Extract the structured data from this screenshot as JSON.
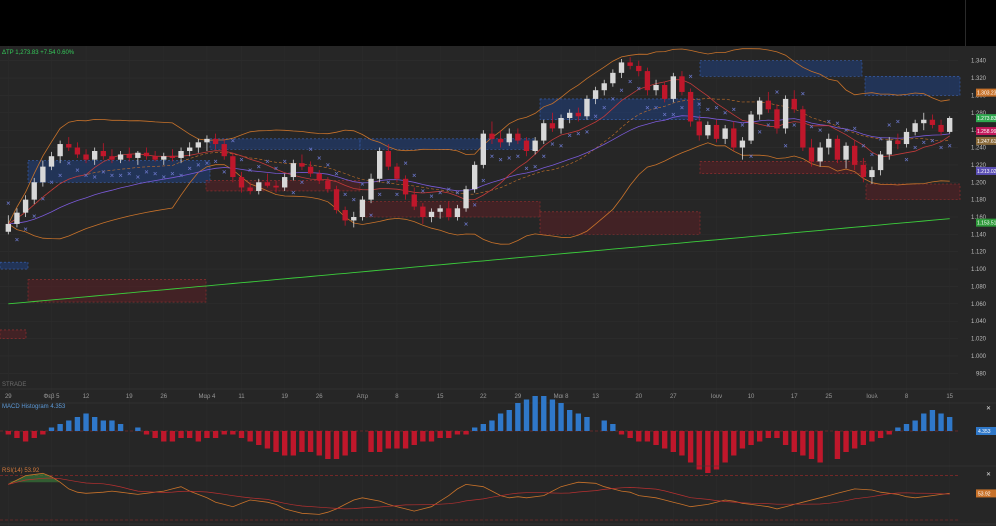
{
  "symbol_line": {
    "label": "ΔTP 1,273.83 +7.54 0.60%"
  },
  "watermark": "STRADE",
  "price_axis": {
    "ticks": [
      "1.340",
      "1.320",
      "1.300",
      "1.280",
      "1.260",
      "1.240",
      "1.220",
      "1.200",
      "1.180",
      "1.160",
      "1.140",
      "1.120",
      "1.100",
      "1.080",
      "1.060",
      "1.040",
      "1.020",
      "1.000",
      "980"
    ],
    "labels": [
      {
        "text": "1.303.23",
        "color": "#c8722a"
      },
      {
        "text": "1.273.83",
        "color": "#2fa84f"
      },
      {
        "text": "1.258.99",
        "color": "#c2185b"
      },
      {
        "text": "1.247.61",
        "color": "#8a6a3a"
      },
      {
        "text": "1.213.02",
        "color": "#5b4fb5"
      },
      {
        "text": "1.153.51",
        "color": "#2e9a3a"
      }
    ]
  },
  "date_axis": [
    "29",
    "Φεβ 5",
    "12",
    "19",
    "26",
    "Μαρ 4",
    "11",
    "19",
    "26",
    "Απρ",
    "8",
    "15",
    "22",
    "29",
    "Μαι 8",
    "13",
    "20",
    "27",
    "Ιουν",
    "10",
    "17",
    "25",
    "Ιουλ",
    "8",
    "15"
  ],
  "macd_panel": {
    "title": "MACD Histogram 4.353",
    "value_label": "4.353",
    "close": "✕"
  },
  "rsi_panel": {
    "title": "RSI(14) 53.92",
    "value_label": "53.92",
    "close": "✕"
  },
  "colors": {
    "up": "#d8d8d8",
    "down": "#c0172b",
    "sma_long": "#3ccf3c",
    "bollinger": "#c8722a",
    "ema": "#7a5ad8",
    "sma_mid": "#c23a3a",
    "sar": "#6a76c8",
    "macd_pos": "#2f78c9",
    "macd_neg": "#c0172b",
    "rsi": "#c8722a",
    "rsi_signal": "#b83030"
  },
  "chart_data": {
    "type": "candlestick",
    "title": "",
    "ylim": [
      970,
      1350
    ],
    "candles": [
      [
        1143,
        1162,
        1140,
        1152
      ],
      [
        1152,
        1170,
        1148,
        1165
      ],
      [
        1165,
        1185,
        1160,
        1180
      ],
      [
        1180,
        1205,
        1175,
        1200
      ],
      [
        1200,
        1225,
        1195,
        1218
      ],
      [
        1218,
        1235,
        1214,
        1230
      ],
      [
        1230,
        1248,
        1222,
        1244
      ],
      [
        1244,
        1252,
        1236,
        1240
      ],
      [
        1240,
        1246,
        1228,
        1232
      ],
      [
        1232,
        1238,
        1222,
        1226
      ],
      [
        1226,
        1240,
        1220,
        1236
      ],
      [
        1236,
        1245,
        1226,
        1230
      ],
      [
        1230,
        1238,
        1222,
        1226
      ],
      [
        1226,
        1236,
        1222,
        1232
      ],
      [
        1232,
        1240,
        1224,
        1228
      ],
      [
        1228,
        1236,
        1220,
        1234
      ],
      [
        1234,
        1240,
        1226,
        1230
      ],
      [
        1230,
        1236,
        1224,
        1226
      ],
      [
        1226,
        1234,
        1220,
        1230
      ],
      [
        1230,
        1238,
        1224,
        1228
      ],
      [
        1228,
        1240,
        1222,
        1236
      ],
      [
        1236,
        1246,
        1230,
        1240
      ],
      [
        1240,
        1250,
        1234,
        1246
      ],
      [
        1246,
        1254,
        1236,
        1250
      ],
      [
        1250,
        1256,
        1238,
        1244
      ],
      [
        1244,
        1250,
        1226,
        1230
      ],
      [
        1230,
        1234,
        1200,
        1206
      ],
      [
        1206,
        1212,
        1188,
        1194
      ],
      [
        1194,
        1200,
        1186,
        1190
      ],
      [
        1190,
        1204,
        1186,
        1200
      ],
      [
        1200,
        1210,
        1194,
        1196
      ],
      [
        1196,
        1202,
        1188,
        1194
      ],
      [
        1194,
        1210,
        1190,
        1206
      ],
      [
        1206,
        1226,
        1202,
        1222
      ],
      [
        1222,
        1232,
        1214,
        1218
      ],
      [
        1218,
        1224,
        1206,
        1210
      ],
      [
        1210,
        1214,
        1198,
        1202
      ],
      [
        1202,
        1206,
        1188,
        1192
      ],
      [
        1192,
        1196,
        1164,
        1168
      ],
      [
        1168,
        1172,
        1150,
        1156
      ],
      [
        1156,
        1166,
        1148,
        1160
      ],
      [
        1160,
        1184,
        1156,
        1180
      ],
      [
        1180,
        1210,
        1176,
        1204
      ],
      [
        1204,
        1240,
        1200,
        1236
      ],
      [
        1236,
        1244,
        1214,
        1218
      ],
      [
        1218,
        1222,
        1200,
        1204
      ],
      [
        1204,
        1208,
        1180,
        1186
      ],
      [
        1186,
        1194,
        1168,
        1172
      ],
      [
        1172,
        1176,
        1152,
        1160
      ],
      [
        1160,
        1170,
        1154,
        1166
      ],
      [
        1166,
        1174,
        1158,
        1170
      ],
      [
        1170,
        1178,
        1156,
        1160
      ],
      [
        1160,
        1174,
        1156,
        1170
      ],
      [
        1170,
        1196,
        1166,
        1192
      ],
      [
        1192,
        1224,
        1188,
        1220
      ],
      [
        1220,
        1260,
        1216,
        1256
      ],
      [
        1256,
        1270,
        1244,
        1250
      ],
      [
        1250,
        1260,
        1240,
        1246
      ],
      [
        1246,
        1262,
        1242,
        1256
      ],
      [
        1256,
        1262,
        1244,
        1248
      ],
      [
        1248,
        1252,
        1230,
        1236
      ],
      [
        1236,
        1252,
        1232,
        1248
      ],
      [
        1248,
        1272,
        1244,
        1268
      ],
      [
        1268,
        1280,
        1258,
        1262
      ],
      [
        1262,
        1278,
        1256,
        1274
      ],
      [
        1274,
        1284,
        1268,
        1280
      ],
      [
        1280,
        1286,
        1270,
        1276
      ],
      [
        1276,
        1300,
        1272,
        1296
      ],
      [
        1296,
        1310,
        1290,
        1306
      ],
      [
        1306,
        1318,
        1300,
        1314
      ],
      [
        1314,
        1330,
        1310,
        1326
      ],
      [
        1326,
        1342,
        1320,
        1338
      ],
      [
        1338,
        1344,
        1330,
        1334
      ],
      [
        1334,
        1340,
        1322,
        1328
      ],
      [
        1328,
        1332,
        1300,
        1306
      ],
      [
        1306,
        1318,
        1300,
        1312
      ],
      [
        1312,
        1316,
        1292,
        1296
      ],
      [
        1296,
        1326,
        1292,
        1322
      ],
      [
        1322,
        1328,
        1300,
        1304
      ],
      [
        1304,
        1308,
        1264,
        1270
      ],
      [
        1270,
        1276,
        1248,
        1254
      ],
      [
        1254,
        1270,
        1250,
        1266
      ],
      [
        1266,
        1272,
        1246,
        1250
      ],
      [
        1250,
        1266,
        1244,
        1262
      ],
      [
        1262,
        1270,
        1236,
        1240
      ],
      [
        1240,
        1252,
        1226,
        1248
      ],
      [
        1248,
        1282,
        1244,
        1278
      ],
      [
        1278,
        1298,
        1272,
        1294
      ],
      [
        1294,
        1304,
        1280,
        1284
      ],
      [
        1284,
        1290,
        1256,
        1262
      ],
      [
        1262,
        1300,
        1256,
        1296
      ],
      [
        1296,
        1306,
        1280,
        1284
      ],
      [
        1284,
        1288,
        1236,
        1240
      ],
      [
        1240,
        1250,
        1218,
        1224
      ],
      [
        1224,
        1246,
        1218,
        1240
      ],
      [
        1240,
        1256,
        1232,
        1250
      ],
      [
        1250,
        1254,
        1222,
        1226
      ],
      [
        1226,
        1246,
        1216,
        1242
      ],
      [
        1242,
        1248,
        1214,
        1220
      ],
      [
        1220,
        1228,
        1200,
        1206
      ],
      [
        1206,
        1218,
        1198,
        1214
      ],
      [
        1214,
        1236,
        1208,
        1232
      ],
      [
        1232,
        1252,
        1226,
        1248
      ],
      [
        1248,
        1256,
        1238,
        1244
      ],
      [
        1244,
        1262,
        1240,
        1258
      ],
      [
        1258,
        1272,
        1254,
        1268
      ],
      [
        1268,
        1280,
        1260,
        1272
      ],
      [
        1272,
        1278,
        1262,
        1266
      ],
      [
        1266,
        1272,
        1254,
        1258
      ],
      [
        1258,
        1276,
        1256,
        1274
      ]
    ],
    "macd_histogram": [
      -1,
      -2,
      -3,
      -2,
      -1,
      1,
      2,
      3,
      4,
      5,
      4,
      3,
      3,
      2,
      1,
      -1,
      -2,
      -3,
      -3,
      -2,
      -2,
      -3,
      -2,
      -2,
      -1,
      -1,
      -2,
      -3,
      -4,
      -5,
      -6,
      -7,
      -7,
      -6,
      -6,
      -7,
      -8,
      -8,
      -7,
      -6,
      -6,
      -6,
      -5,
      -5,
      -5,
      -4,
      -3,
      -3,
      -2,
      -2,
      -1,
      -1,
      1,
      2,
      3,
      5,
      6,
      8,
      9,
      10,
      10,
      9,
      8,
      6,
      5,
      4,
      3,
      2,
      -1,
      -2,
      -3,
      -3,
      -4,
      -5,
      -6,
      -7,
      -9,
      -11,
      -12,
      -11,
      -9,
      -7,
      -5,
      -4,
      -3,
      -2,
      -2,
      -4,
      -6,
      -7,
      -8,
      -9,
      -8,
      -6,
      -5,
      -4,
      -3,
      -2,
      -1,
      1,
      2,
      3,
      5,
      6,
      5,
      4
    ],
    "rsi": [
      62,
      66,
      70,
      72,
      69,
      64,
      58,
      55,
      54,
      55,
      56,
      55,
      54,
      53,
      55,
      56,
      58,
      60,
      56,
      50,
      46,
      44,
      42,
      45,
      48,
      46,
      44,
      40,
      38,
      36,
      35,
      37,
      40,
      44,
      48,
      50,
      47,
      44,
      42,
      40,
      38,
      42,
      47,
      52,
      58,
      62,
      60,
      56,
      52,
      50,
      51,
      50,
      52,
      56,
      60,
      62,
      64,
      63,
      60,
      58,
      56,
      55,
      52,
      50,
      48,
      46,
      44,
      42,
      44,
      46,
      48,
      47,
      45,
      44,
      42,
      40,
      42,
      44,
      46,
      50,
      52,
      54,
      56,
      58,
      57,
      55,
      54,
      53,
      51,
      50,
      52,
      53,
      54
    ]
  }
}
